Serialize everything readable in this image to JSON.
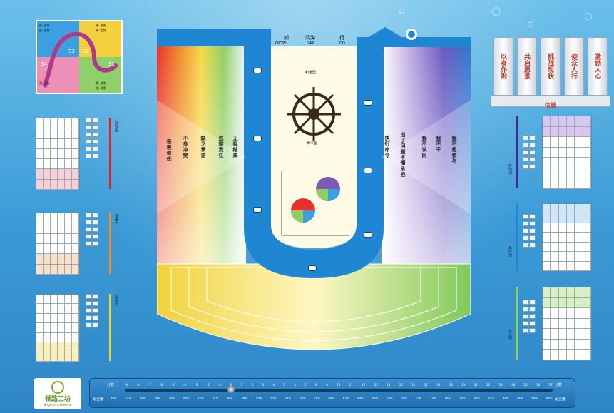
{
  "quadrant": {
    "cells": [
      "S1",
      "S2",
      "S3",
      "S4"
    ],
    "labels": [
      "高: 关系",
      "低: 工作",
      "低: 关系",
      "低: 工作",
      "高: 关系",
      "高: 工作",
      "低: 关系",
      "高: 工作"
    ]
  },
  "board": {
    "top_left": "知",
    "top_mid": "鸿沟",
    "top_right": "行",
    "know": "KNOW",
    "gap": "GAP",
    "do": "DO",
    "wheel_top": "和谐型",
    "wheel_bottom": "命令型",
    "left_triangles": [
      "表表信任",
      "不良冲突",
      "缺乏承诺",
      "逃避责任",
      "无视结果"
    ],
    "right_triangles": [
      "执行命令",
      "出了问题不懂承担",
      "我不认同",
      "我不干",
      "我不想参与"
    ],
    "colors": {
      "red": "#e8312a",
      "orange": "#f08a2c",
      "yellow": "#f6d949",
      "green": "#8fcf62",
      "blue": "#1f86d4",
      "purple": "#7a5bb0"
    }
  },
  "pillars": [
    "以身作则",
    "共启愿景",
    "挑战现状",
    "使众人行",
    "激励人心"
  ],
  "pillar_base": "信誉",
  "left_bars": [
    "高效能",
    "直接力",
    "影响力"
  ],
  "right_bars": [
    "行动力",
    "执行力",
    "专业力"
  ],
  "slider": {
    "left_label": "分数",
    "right_label": "分数",
    "bottom_left": "配合度",
    "bottom_right": "配合度",
    "ticks": [
      "-9",
      "-8",
      "-7",
      "-6",
      "-5",
      "-4",
      "-3",
      "-2",
      "-1",
      "0",
      "1",
      "2",
      "3",
      "4",
      "5",
      "6",
      "7",
      "8",
      "9",
      "10",
      "11",
      "12",
      "13",
      "14",
      "15",
      "16",
      "17",
      "18",
      "19",
      "20",
      "21",
      "22",
      "23",
      "24",
      "25",
      "26",
      "27"
    ],
    "pcts": [
      "30%",
      "32%",
      "34%",
      "36%",
      "38%",
      "40%",
      "42%",
      "44%",
      "46%",
      "48%",
      "50%",
      "52%",
      "54%",
      "56%",
      "58%",
      "60%",
      "62%",
      "64%",
      "66%",
      "68%",
      "70%",
      "72%",
      "74%",
      "76%",
      "78%",
      "80%",
      "82%",
      "84%",
      "86%",
      "88%",
      "90%"
    ],
    "value": 0
  },
  "logo": {
    "text": "领路工坊",
    "sub": "Brighten a Lifetime"
  }
}
